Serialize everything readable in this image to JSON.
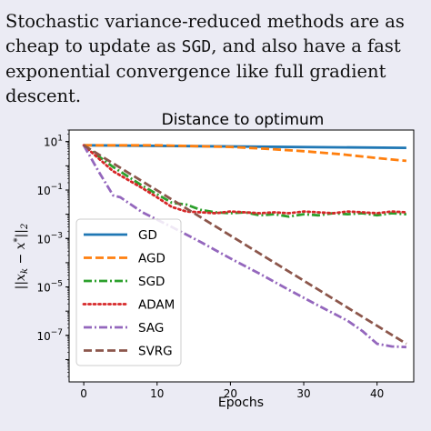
{
  "caption": {
    "before_sgd": "Stochastic variance-reduced methods are as cheap to update as ",
    "sgd_code": "SGD",
    "after_sgd": ", and also have a fast exponential con­vergence like full gradient descent."
  },
  "chart_data": {
    "type": "line",
    "title": "Distance to optimum",
    "xlabel": "Epochs",
    "ylabel": "||x_k − x*||_2",
    "yscale": "log",
    "xlim": [
      -2,
      45
    ],
    "ylim": [
      1.2e-09,
      30
    ],
    "xticks": [
      0,
      10,
      20,
      30,
      40
    ],
    "yticks": [
      {
        "value": 10,
        "mantissa": "10",
        "exp": "1"
      },
      {
        "value": 0.1,
        "mantissa": "10",
        "exp": "−1"
      },
      {
        "value": 0.001,
        "mantissa": "10",
        "exp": "−3"
      },
      {
        "value": 1e-05,
        "mantissa": "10",
        "exp": "−5"
      },
      {
        "value": 1e-07,
        "mantissa": "10",
        "exp": "−7"
      }
    ],
    "grid": false,
    "legend": "left",
    "series": [
      {
        "name": "GD",
        "color": "#1f77b4",
        "dash": "solid",
        "x": [
          0,
          44
        ],
        "y": [
          7,
          5.5
        ]
      },
      {
        "name": "AGD",
        "color": "#ff7f0e",
        "dash": "dashed",
        "x": [
          0,
          10,
          20,
          25,
          30,
          35,
          40,
          44
        ],
        "y": [
          7,
          7,
          6,
          5,
          4,
          3,
          2.1,
          1.6
        ]
      },
      {
        "name": "SGD",
        "color": "#2ca02c",
        "dash": "dashdot",
        "x": [
          0,
          4,
          8,
          12,
          14,
          16,
          18,
          20,
          22,
          24,
          26,
          28,
          30,
          32,
          34,
          36,
          38,
          40,
          42,
          44
        ],
        "y": [
          7,
          0.9,
          0.15,
          0.03,
          0.025,
          0.015,
          0.012,
          0.011,
          0.012,
          0.009,
          0.01,
          0.008,
          0.01,
          0.009,
          0.011,
          0.01,
          0.011,
          0.009,
          0.011,
          0.01
        ]
      },
      {
        "name": "ADAM",
        "color": "#d62728",
        "dash": "dotted",
        "x": [
          0,
          4,
          8,
          10,
          12,
          14,
          16,
          18,
          20,
          22,
          24,
          26,
          28,
          30,
          32,
          34,
          36,
          38,
          40,
          42,
          44
        ],
        "y": [
          7,
          0.6,
          0.12,
          0.05,
          0.02,
          0.013,
          0.012,
          0.011,
          0.013,
          0.012,
          0.011,
          0.012,
          0.011,
          0.013,
          0.012,
          0.011,
          0.013,
          0.012,
          0.011,
          0.013,
          0.012
        ]
      },
      {
        "name": "SAG",
        "color": "#9467bd",
        "dash": "dashdot",
        "x": [
          0,
          2,
          4,
          5,
          8,
          12,
          16,
          20,
          24,
          28,
          32,
          36,
          38,
          40,
          42,
          44
        ],
        "y": [
          7,
          0.6,
          0.06,
          0.05,
          0.012,
          0.003,
          0.0007,
          0.00015,
          3.5e-05,
          7.5e-06,
          1.7e-06,
          4e-07,
          1.5e-07,
          4.5e-08,
          3.5e-08,
          3.3e-08
        ]
      },
      {
        "name": "SVRG",
        "color": "#8c564b",
        "dash": "dashed",
        "x": [
          0,
          44
        ],
        "y": [
          7,
          4.5e-08
        ]
      }
    ]
  }
}
